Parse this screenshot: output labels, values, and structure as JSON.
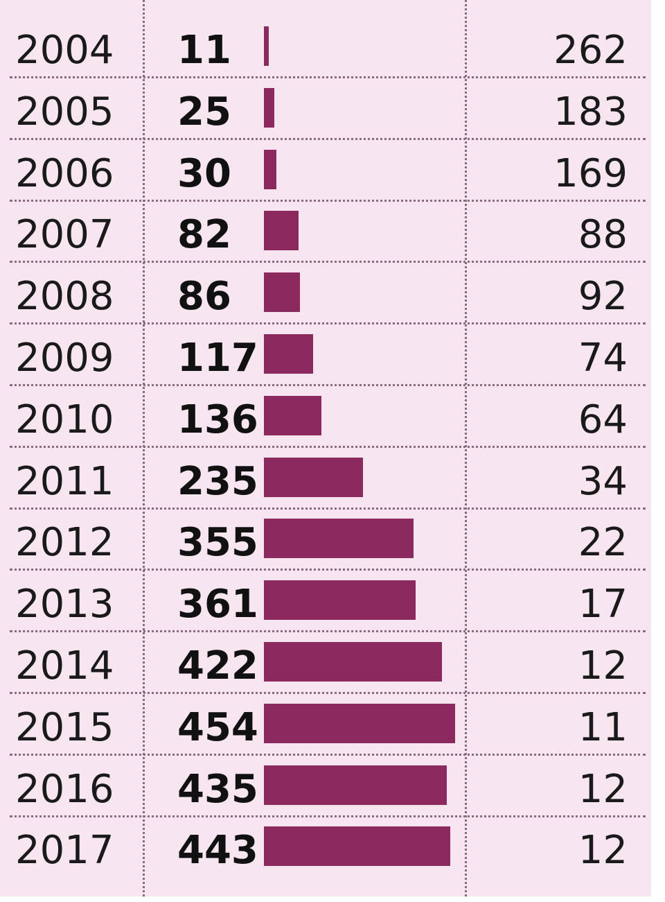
{
  "chart_data": {
    "type": "table",
    "bar_color": "#8c2a60",
    "background_color": "#f7e6ef",
    "rows": [
      {
        "year": "2004",
        "value": 11,
        "value_label": "11",
        "right": "262"
      },
      {
        "year": "2005",
        "value": 25,
        "value_label": "25",
        "right": "183"
      },
      {
        "year": "2006",
        "value": 30,
        "value_label": "30",
        "right": "169"
      },
      {
        "year": "2007",
        "value": 82,
        "value_label": "82",
        "right": "88"
      },
      {
        "year": "2008",
        "value": 86,
        "value_label": "86",
        "right": "92"
      },
      {
        "year": "2009",
        "value": 117,
        "value_label": "117",
        "right": "74"
      },
      {
        "year": "2010",
        "value": 136,
        "value_label": "136",
        "right": "64"
      },
      {
        "year": "2011",
        "value": 235,
        "value_label": "235",
        "right": "34"
      },
      {
        "year": "2012",
        "value": 355,
        "value_label": "355",
        "right": "22"
      },
      {
        "year": "2013",
        "value": 361,
        "value_label": "361",
        "right": "17"
      },
      {
        "year": "2014",
        "value": 422,
        "value_label": "422",
        "right": "12"
      },
      {
        "year": "2015",
        "value": 454,
        "value_label": "454",
        "right": "11"
      },
      {
        "year": "2016",
        "value": 435,
        "value_label": "435",
        "right": "12"
      },
      {
        "year": "2017",
        "value": 443,
        "value_label": "443",
        "right": "12"
      }
    ]
  }
}
